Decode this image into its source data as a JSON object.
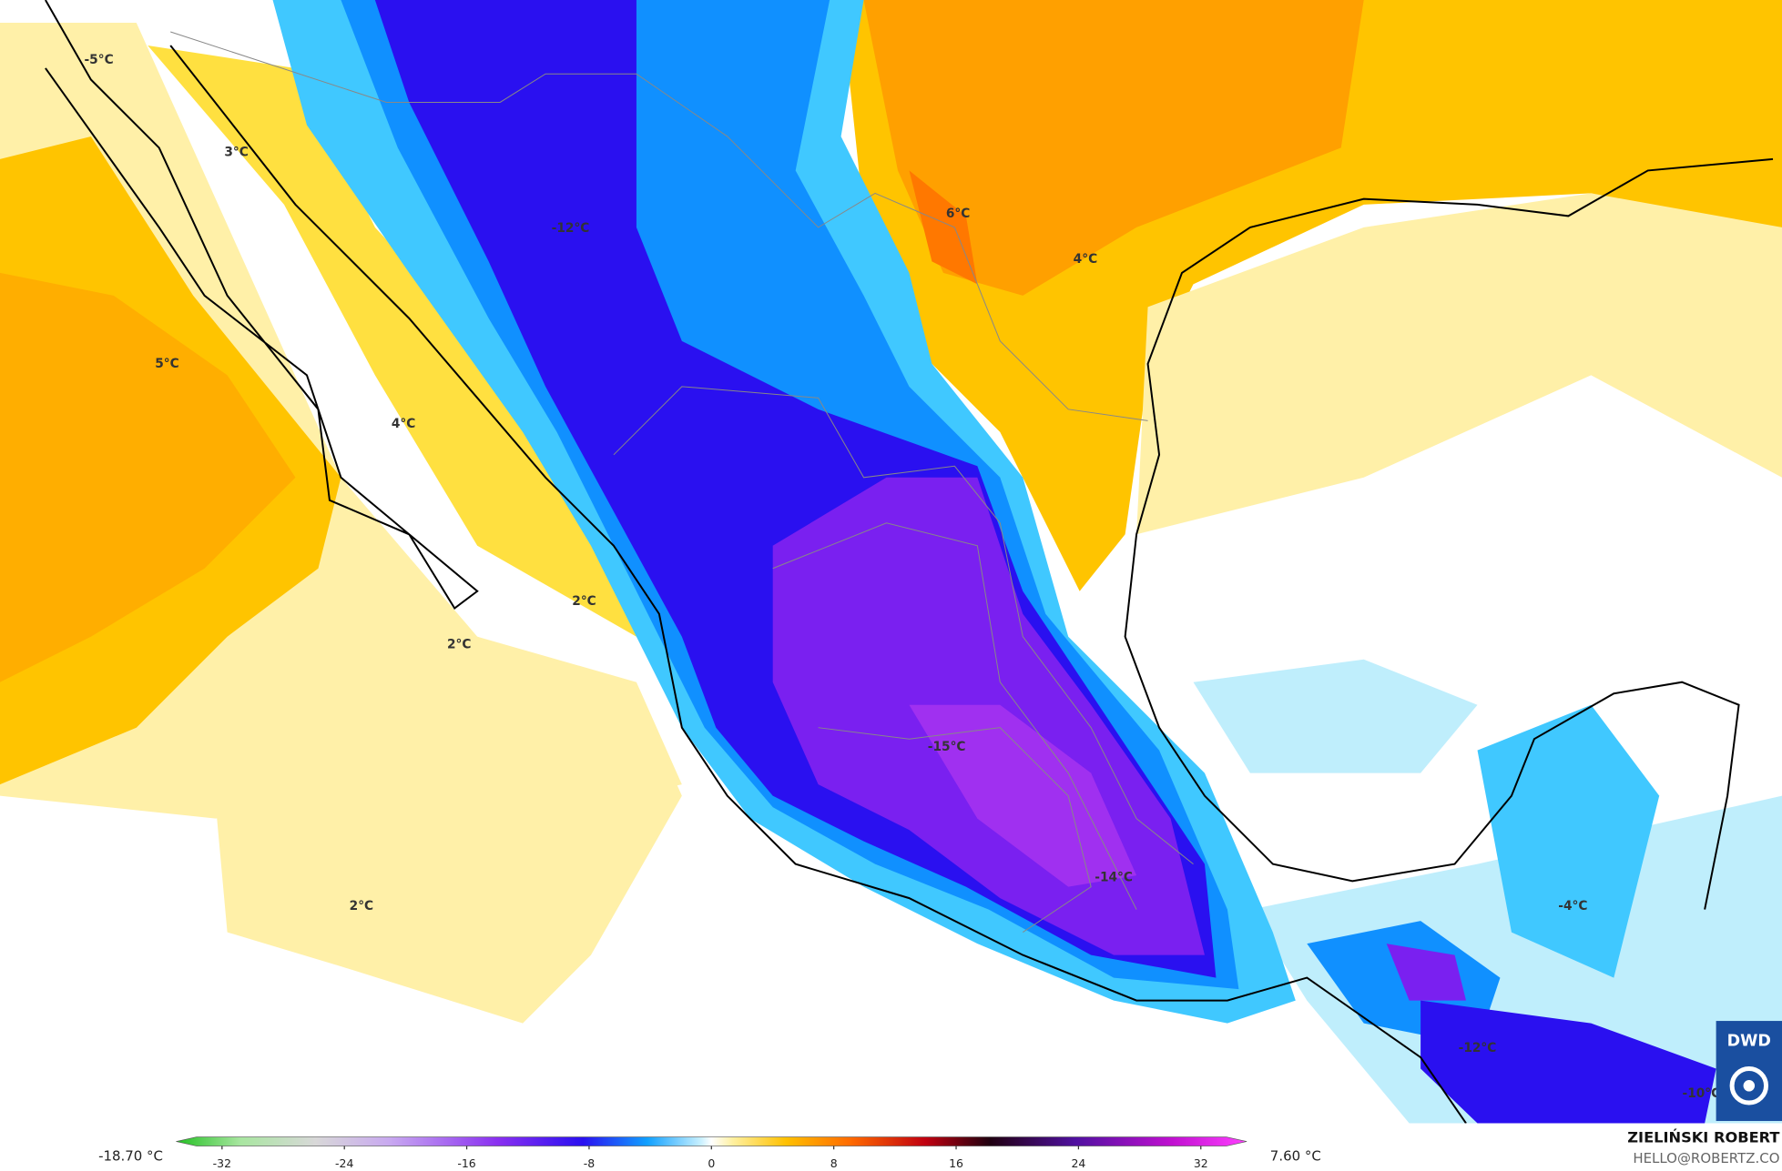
{
  "map": {
    "labels": [
      "-5°C",
      "3°C",
      "-12°C",
      "6°C",
      "4°C",
      "5°C",
      "4°C",
      "2°C",
      "2°C",
      "-15°C",
      "-14°C",
      "2°C",
      "-4°C",
      "-12°C",
      "-10°C"
    ],
    "colorbar": {
      "min_label": "-18.70 °C",
      "max_label": "7.60 °C",
      "range": [
        -35,
        35
      ],
      "ticks": [
        -32,
        -24,
        -16,
        -8,
        0,
        8,
        16,
        24,
        32
      ]
    },
    "author": "ZIELIŃSKI ROBERT",
    "contact": "HELLO@ROBERTZ.CO",
    "logo": "DWD"
  }
}
